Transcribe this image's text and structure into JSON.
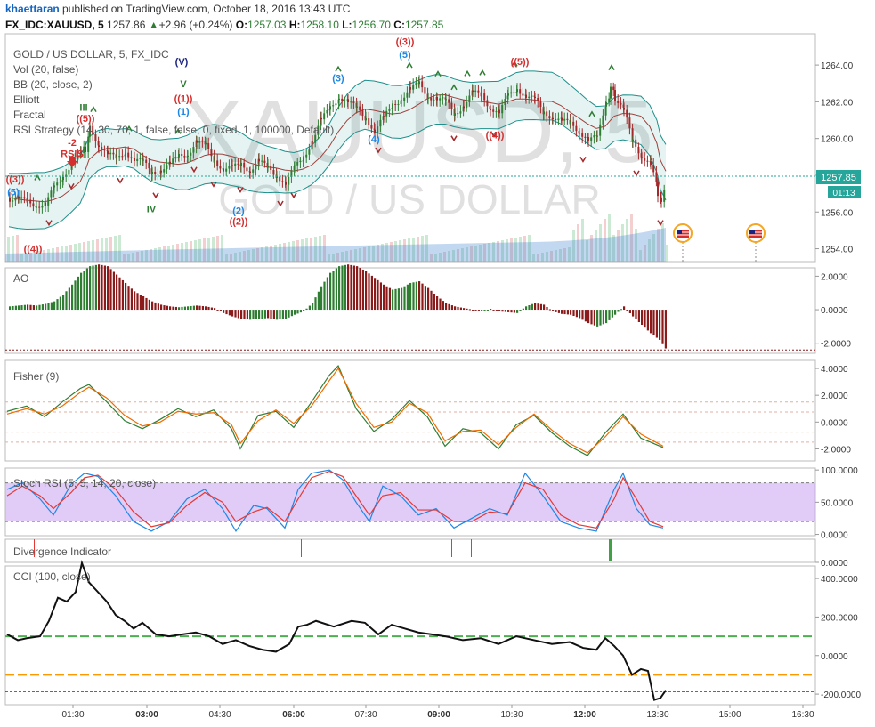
{
  "header": {
    "author": "khaettaran",
    "published": "published on TradingView.com, October 18, 2016 13:43 UTC",
    "symbol": "FX_IDC:XAUUSD, 5",
    "last": "1257.86",
    "change": "+2.96 (+0.24%)",
    "o_label": "O:",
    "o": "1257.03",
    "h_label": "H:",
    "h": "1258.10",
    "l_label": "L:",
    "l": "1256.70",
    "c_label": "C:",
    "c": "1257.85"
  },
  "watermark": {
    "big": "XAUUSD, 5",
    "small": "GOLD / US DOLLAR"
  },
  "indicators": [
    "GOLD / US DOLLAR, 5, FX_IDC",
    "Vol (20, false)",
    "BB (20, close, 2)",
    "Elliott",
    "Fractal",
    "RSI Strategy (14, 30, 70, 1, false, false, 0, fixed, 1, 100000, Default)"
  ],
  "price_tag": {
    "value": "1257.85",
    "countdown": "01:13"
  },
  "panes": {
    "ao": "AO",
    "fisher": "Fisher (9)",
    "stoch": "Stoch RSI (5, 5, 14, 20, close)",
    "divergence": "Divergence Indicator",
    "cci": "CCI (100, close)"
  },
  "x_axis": [
    "01:30",
    "03:00",
    "04:30",
    "06:00",
    "07:30",
    "09:00",
    "10:30",
    "12:00",
    "13:30",
    "15:00",
    "16:30"
  ],
  "wave_labels": [
    {
      "t": "((3))",
      "x": 17,
      "y": 1257.6,
      "c": "#d32f2f"
    },
    {
      "t": "(5)",
      "x": 15,
      "y": 1256.9,
      "c": "#1e88e5"
    },
    {
      "t": "((4))",
      "x": 37,
      "y": 1253.8,
      "c": "#d32f2f"
    },
    {
      "t": "-2",
      "x": 81,
      "y": 1259.6,
      "c": "#d32f2f"
    },
    {
      "t": "RSIS",
      "x": 81,
      "y": 1259.0,
      "c": "#d32f2f"
    },
    {
      "t": "III",
      "x": 94,
      "y": 1261.5,
      "c": "#2e7d32"
    },
    {
      "t": "((5))",
      "x": 96,
      "y": 1260.9,
      "c": "#d32f2f"
    },
    {
      "t": "IV",
      "x": 170,
      "y": 1256.0,
      "c": "#2e7d32"
    },
    {
      "t": "(V)",
      "x": 204,
      "y": 1264.0,
      "c": "#1a237e"
    },
    {
      "t": "V",
      "x": 206,
      "y": 1262.8,
      "c": "#2e7d32"
    },
    {
      "t": "((1))",
      "x": 206,
      "y": 1262.0,
      "c": "#d32f2f"
    },
    {
      "t": "(1)",
      "x": 206,
      "y": 1261.3,
      "c": "#1e88e5"
    },
    {
      "t": "(2)",
      "x": 268,
      "y": 1255.9,
      "c": "#1e88e5"
    },
    {
      "t": "((2))",
      "x": 268,
      "y": 1255.3,
      "c": "#d32f2f"
    },
    {
      "t": "(3)",
      "x": 380,
      "y": 1263.1,
      "c": "#1e88e5"
    },
    {
      "t": "(4)",
      "x": 420,
      "y": 1259.8,
      "c": "#1e88e5"
    },
    {
      "t": "((3))",
      "x": 455,
      "y": 1265.1,
      "c": "#d32f2f"
    },
    {
      "t": "(5)",
      "x": 455,
      "y": 1264.4,
      "c": "#1e88e5"
    },
    {
      "t": "((4))",
      "x": 556,
      "y": 1260.0,
      "c": "#d32f2f"
    },
    {
      "t": "((5))",
      "x": 584,
      "y": 1264.0,
      "c": "#d32f2f"
    }
  ],
  "fractal_up_x": [
    42,
    105,
    145,
    200,
    380,
    460,
    492,
    510,
    525,
    542,
    578,
    665,
    687
  ],
  "fractal_down_x": [
    55,
    80,
    135,
    175,
    218,
    240,
    270,
    315,
    330,
    425,
    510,
    555,
    655,
    715,
    742
  ],
  "chart_data": [
    {
      "type": "candlestick",
      "pane": "price",
      "series": [
        {
          "name": "XAUUSD close",
          "x": [
            10,
            20,
            30,
            40,
            50,
            60,
            70,
            80,
            90,
            95,
            100,
            110,
            120,
            130,
            140,
            150,
            160,
            170,
            180,
            190,
            200,
            210,
            220,
            230,
            240,
            250,
            260,
            270,
            280,
            290,
            300,
            310,
            320,
            330,
            340,
            350,
            360,
            370,
            380,
            390,
            400,
            410,
            420,
            430,
            440,
            450,
            460,
            470,
            480,
            490,
            500,
            510,
            520,
            530,
            540,
            550,
            560,
            570,
            580,
            590,
            600,
            610,
            620,
            630,
            640,
            650,
            660,
            670,
            680,
            685,
            690,
            700,
            710,
            720,
            730,
            738,
            742,
            748
          ],
          "values": [
            1256.8,
            1256.6,
            1256.5,
            1256.5,
            1256.4,
            1257.2,
            1258.0,
            1258.8,
            1259.0,
            1259.5,
            1260.6,
            1259.8,
            1259.1,
            1258.8,
            1259.4,
            1258.9,
            1258.6,
            1258.2,
            1258.4,
            1258.5,
            1259.0,
            1259.3,
            1259.8,
            1259.5,
            1258.9,
            1258.4,
            1258.3,
            1258.6,
            1258.4,
            1258.7,
            1258.3,
            1258.1,
            1257.6,
            1258.3,
            1259.0,
            1260.0,
            1260.9,
            1261.6,
            1262.4,
            1262.0,
            1261.5,
            1261.2,
            1260.5,
            1261.0,
            1261.8,
            1262.3,
            1262.6,
            1262.9,
            1262.4,
            1262.2,
            1261.9,
            1261.4,
            1261.9,
            1262.4,
            1262.3,
            1261.8,
            1261.4,
            1262.2,
            1262.8,
            1262.4,
            1262.0,
            1261.4,
            1261.3,
            1260.9,
            1260.7,
            1260.5,
            1260.0,
            1259.9,
            1262.0,
            1262.6,
            1262.3,
            1261.4,
            1259.8,
            1259.2,
            1258.6,
            1257.1,
            1256.8,
            1257.85
          ]
        }
      ],
      "ylim": [
        1253.3,
        1265.7
      ],
      "y_ticks": [
        1254,
        1256,
        1258,
        1260,
        1262,
        1264
      ],
      "x_ticks": [
        "01:30",
        "03:00",
        "04:30",
        "06:00",
        "07:30",
        "09:00",
        "10:30",
        "12:00",
        "13:30",
        "15:00",
        "16:30"
      ],
      "overlays": [
        "BB (20, close, 2)",
        "Vol (20, false)"
      ]
    },
    {
      "type": "bar",
      "pane": "AO",
      "x": [
        10,
        20,
        30,
        40,
        50,
        60,
        70,
        80,
        90,
        100,
        110,
        120,
        130,
        140,
        150,
        160,
        170,
        180,
        190,
        200,
        210,
        220,
        230,
        240,
        250,
        260,
        270,
        280,
        290,
        300,
        310,
        320,
        330,
        340,
        350,
        360,
        370,
        380,
        390,
        400,
        410,
        420,
        430,
        440,
        450,
        460,
        470,
        480,
        490,
        500,
        510,
        520,
        530,
        540,
        550,
        560,
        570,
        580,
        590,
        600,
        610,
        620,
        630,
        640,
        650,
        660,
        670,
        680,
        690,
        700,
        710,
        720,
        730,
        740,
        748
      ],
      "values": [
        0.2,
        0.25,
        0.3,
        0.25,
        0.35,
        0.5,
        0.9,
        1.5,
        2.2,
        2.6,
        2.7,
        2.6,
        2.1,
        1.6,
        1.1,
        0.8,
        0.5,
        0.3,
        0.2,
        0.15,
        0.2,
        0.25,
        0.2,
        0.1,
        -0.2,
        -0.4,
        -0.55,
        -0.6,
        -0.55,
        -0.5,
        -0.6,
        -0.55,
        -0.3,
        -0.1,
        0.4,
        1.4,
        2.2,
        2.6,
        2.7,
        2.6,
        2.3,
        1.9,
        1.5,
        1.2,
        1.3,
        1.6,
        1.7,
        1.3,
        0.8,
        0.4,
        0.2,
        0.1,
        0.0,
        -0.1,
        0.05,
        -0.1,
        -0.15,
        -0.2,
        0.2,
        0.4,
        0.3,
        -0.1,
        -0.25,
        -0.3,
        -0.5,
        -0.8,
        -1.0,
        -0.8,
        -0.3,
        0.2,
        -0.4,
        -0.9,
        -1.4,
        -1.8,
        -2.4
      ],
      "ylim": [
        -2.6,
        2.5
      ],
      "y_ticks": [
        2.0,
        0.0,
        -2.0
      ]
    },
    {
      "type": "line",
      "pane": "Fisher (9)",
      "x": [
        8,
        30,
        50,
        70,
        90,
        100,
        120,
        140,
        160,
        180,
        200,
        220,
        240,
        260,
        270,
        290,
        310,
        330,
        350,
        370,
        380,
        400,
        420,
        440,
        460,
        480,
        500,
        520,
        540,
        560,
        580,
        600,
        620,
        640,
        660,
        680,
        700,
        720,
        745
      ],
      "series": [
        {
          "name": "Fisher",
          "values": [
            0.8,
            1.2,
            0.4,
            1.5,
            2.5,
            2.8,
            1.5,
            0.1,
            -0.5,
            0.2,
            1.0,
            0.4,
            0.9,
            -0.5,
            -2.0,
            0.5,
            0.8,
            -0.4,
            1.5,
            3.5,
            4.2,
            1.0,
            -0.7,
            0.2,
            1.6,
            0.4,
            -1.8,
            -0.5,
            -0.8,
            -2.0,
            -0.2,
            0.5,
            -0.8,
            -1.8,
            -2.5,
            -0.8,
            0.6,
            -1.2,
            -1.9
          ]
        },
        {
          "name": "Trigger",
          "values": [
            0.6,
            1.0,
            0.6,
            1.2,
            2.2,
            2.6,
            1.8,
            0.5,
            -0.3,
            0.0,
            0.8,
            0.6,
            0.7,
            -0.2,
            -1.6,
            0.1,
            0.9,
            -0.1,
            1.2,
            3.1,
            4.0,
            1.4,
            -0.4,
            0.0,
            1.4,
            0.7,
            -1.4,
            -0.7,
            -0.6,
            -1.7,
            -0.4,
            0.6,
            -0.6,
            -1.6,
            -2.3,
            -1.1,
            0.4,
            -0.9,
            -1.8
          ]
        }
      ],
      "ylim": [
        -2.9,
        4.6
      ],
      "y_ticks": [
        4.0,
        2.0,
        0.0,
        -2.0
      ]
    },
    {
      "type": "line",
      "pane": "Stoch RSI (5, 5, 14, 20, close)",
      "x": [
        8,
        25,
        45,
        60,
        80,
        95,
        110,
        130,
        150,
        170,
        190,
        210,
        230,
        250,
        265,
        285,
        300,
        320,
        335,
        350,
        370,
        385,
        400,
        415,
        430,
        450,
        470,
        490,
        510,
        530,
        550,
        570,
        590,
        610,
        630,
        650,
        670,
        690,
        700,
        715,
        730,
        745
      ],
      "series": [
        {
          "name": "K",
          "values": [
            70,
            80,
            55,
            30,
            78,
            95,
            90,
            60,
            20,
            5,
            20,
            55,
            70,
            40,
            5,
            45,
            40,
            10,
            70,
            95,
            100,
            85,
            50,
            20,
            75,
            60,
            30,
            40,
            10,
            25,
            40,
            30,
            95,
            60,
            20,
            10,
            5,
            70,
            95,
            40,
            15,
            10
          ]
        },
        {
          "name": "D",
          "values": [
            60,
            75,
            60,
            40,
            65,
            88,
            92,
            70,
            35,
            12,
            18,
            45,
            65,
            50,
            20,
            35,
            42,
            20,
            55,
            88,
            98,
            90,
            60,
            30,
            60,
            65,
            38,
            38,
            20,
            20,
            35,
            32,
            80,
            70,
            30,
            15,
            10,
            55,
            88,
            55,
            20,
            12
          ]
        }
      ],
      "ylim": [
        -2,
        103
      ],
      "y_ticks": [
        100,
        50,
        0
      ]
    },
    {
      "type": "bar",
      "pane": "Divergence Indicator",
      "x": [
        38,
        338,
        507,
        529,
        684
      ],
      "values": [
        1,
        1,
        1,
        1,
        1
      ],
      "ylim": [
        0,
        1
      ],
      "y_ticks": [
        0
      ]
    },
    {
      "type": "line",
      "pane": "CCI (100, close)",
      "x": [
        8,
        20,
        30,
        45,
        55,
        65,
        75,
        85,
        92,
        100,
        110,
        120,
        130,
        140,
        150,
        160,
        175,
        190,
        205,
        220,
        235,
        250,
        265,
        280,
        295,
        310,
        325,
        335,
        345,
        355,
        375,
        395,
        410,
        425,
        440,
        455,
        470,
        485,
        500,
        520,
        540,
        560,
        580,
        600,
        620,
        640,
        655,
        670,
        680,
        690,
        700,
        710,
        720,
        728,
        735,
        742,
        748
      ],
      "values": [
        110,
        80,
        90,
        100,
        180,
        300,
        280,
        330,
        480,
        380,
        330,
        280,
        210,
        180,
        140,
        170,
        110,
        100,
        110,
        120,
        100,
        60,
        80,
        50,
        30,
        20,
        60,
        150,
        160,
        180,
        150,
        180,
        170,
        110,
        160,
        140,
        120,
        110,
        100,
        80,
        90,
        60,
        100,
        80,
        60,
        70,
        40,
        30,
        90,
        50,
        0,
        -100,
        -70,
        -80,
        -230,
        -220,
        -180
      ],
      "ylim": [
        -255,
        465
      ],
      "y_ticks": [
        400,
        200,
        0,
        -200
      ],
      "levels": [
        100,
        -100,
        -185
      ]
    }
  ]
}
